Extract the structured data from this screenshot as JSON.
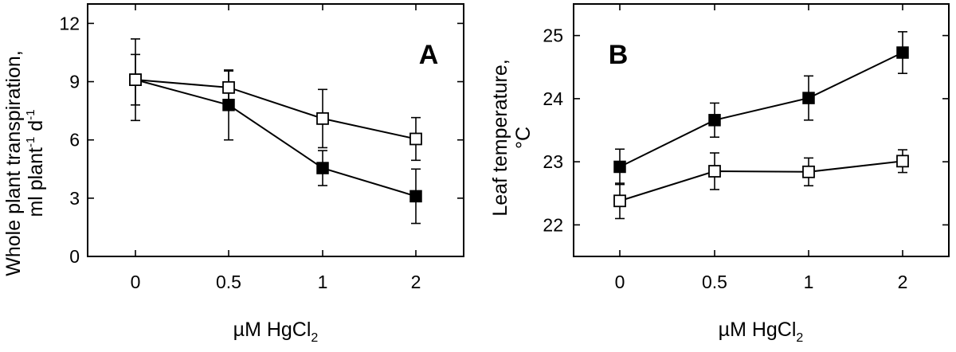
{
  "chart_data": [
    {
      "type": "line",
      "panel_label": "A",
      "ylabel_line1": "Whole plant transpiration,",
      "ylabel_line2_prefix": "ml plant",
      "ylabel_line2_sup1": "-1",
      "ylabel_line2_mid": " d",
      "ylabel_line2_sup2": "-1",
      "xlabel_prefix": "µM HgCl",
      "xlabel_sub": "2",
      "categories": [
        "0",
        "0.5",
        "1",
        "2"
      ],
      "ylim": [
        0,
        13
      ],
      "yticks": [
        0,
        3,
        6,
        9,
        12
      ],
      "series": [
        {
          "marker": "filled",
          "values": [
            9.1,
            7.8,
            4.55,
            3.1
          ],
          "errors": [
            2.1,
            1.8,
            0.9,
            1.4
          ]
        },
        {
          "marker": "open",
          "values": [
            9.1,
            8.7,
            7.1,
            6.05
          ],
          "errors": [
            1.3,
            0.85,
            1.5,
            1.1
          ]
        }
      ]
    },
    {
      "type": "line",
      "panel_label": "B",
      "ylabel_line1": "Leaf temperature,",
      "ylabel_line2": "°C",
      "xlabel_prefix": "µM HgCl",
      "xlabel_sub": "2",
      "categories": [
        "0",
        "0.5",
        "1",
        "2"
      ],
      "ylim": [
        21.5,
        25.5
      ],
      "yticks": [
        22,
        23,
        24,
        25
      ],
      "series": [
        {
          "marker": "filled",
          "values": [
            22.92,
            23.66,
            24.01,
            24.73
          ],
          "errors": [
            0.28,
            0.27,
            0.35,
            0.33
          ]
        },
        {
          "marker": "open",
          "values": [
            22.38,
            22.85,
            22.84,
            23.01
          ],
          "errors": [
            0.28,
            0.29,
            0.22,
            0.18
          ]
        }
      ]
    }
  ]
}
